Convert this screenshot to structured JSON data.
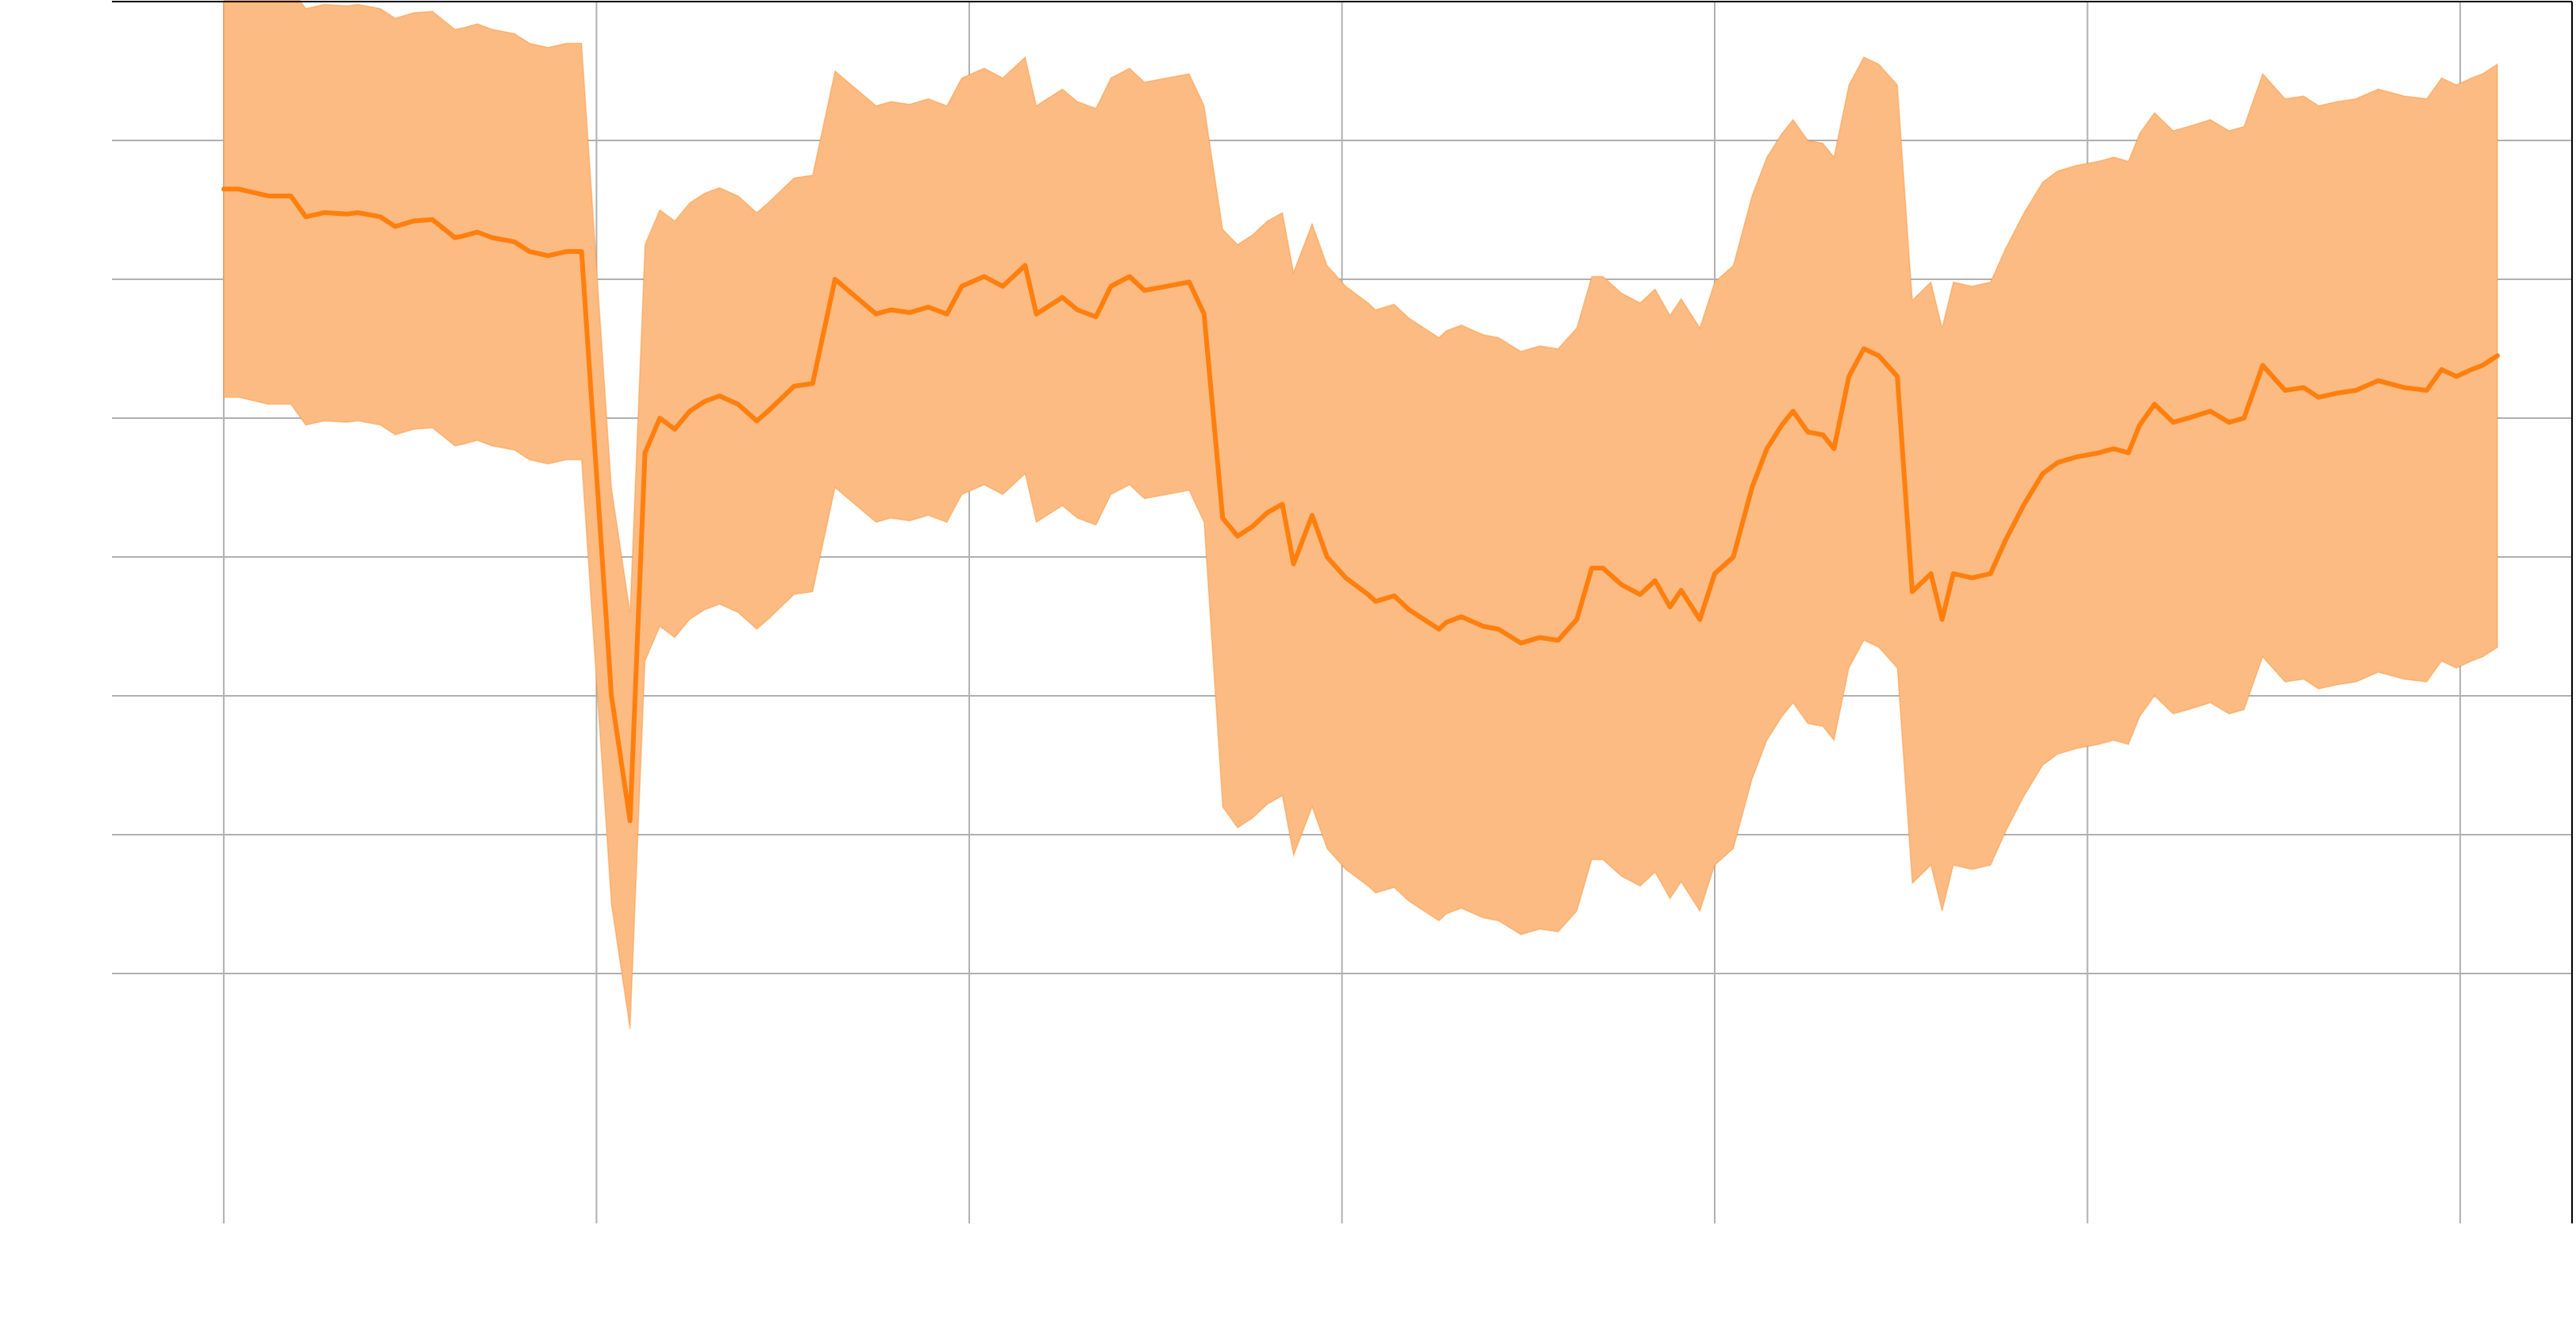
{
  "chart_data": {
    "type": "line",
    "title": "",
    "xlabel": "",
    "ylabel": "",
    "xlim": [
      -0.3,
      6.3
    ],
    "ylim": [
      -0.8,
      8.0
    ],
    "x_ticks": [
      0,
      1,
      2,
      3,
      4,
      5,
      6
    ],
    "y_ticks": [
      1,
      2,
      3,
      4,
      5,
      6,
      7
    ],
    "x_tick_labels": [],
    "y_tick_labels": [],
    "grid": true,
    "legend": "none",
    "colors": {
      "line": "#ff7f0e",
      "band": "#fbbb82"
    },
    "series": [
      {
        "x": [
          0,
          0.04,
          0.12,
          0.18,
          0.22,
          0.27,
          0.33,
          0.36,
          0.42,
          0.46,
          0.51,
          0.56,
          0.62,
          0.64,
          0.68,
          0.72,
          0.78,
          0.82,
          0.87,
          0.92,
          0.96,
          1.0,
          1.04,
          1.09,
          1.13,
          1.17,
          1.21,
          1.25,
          1.29,
          1.33,
          1.38,
          1.43,
          1.46,
          1.53,
          1.58,
          1.64,
          1.75,
          1.79,
          1.84,
          1.89,
          1.94,
          1.98,
          2.04,
          2.09,
          2.15,
          2.18,
          2.25,
          2.29,
          2.34,
          2.38,
          2.43,
          2.47,
          2.53,
          2.59,
          2.63,
          2.68,
          2.72,
          2.76,
          2.8,
          2.84,
          2.87,
          2.92,
          2.96,
          3.01,
          3.07,
          3.09,
          3.14,
          3.18,
          3.22,
          3.26,
          3.28,
          3.32,
          3.38,
          3.42,
          3.48,
          3.53,
          3.58,
          3.63,
          3.67,
          3.7,
          3.75,
          3.8,
          3.84,
          3.88,
          3.91,
          3.96,
          4.0,
          4.05,
          4.1,
          4.14,
          4.18,
          4.21,
          4.25,
          4.29,
          4.32,
          4.36,
          4.4,
          4.44,
          4.49,
          4.53,
          4.58,
          4.61,
          4.64,
          4.69,
          4.74,
          4.78,
          4.83,
          4.88,
          4.92,
          4.97,
          5.03,
          5.07,
          5.11,
          5.14,
          5.18,
          5.23,
          5.27,
          5.33,
          5.38,
          5.42,
          5.47,
          5.53,
          5.58,
          5.62,
          5.67,
          5.72,
          5.78,
          5.85,
          5.91,
          5.95,
          5.99,
          6.03,
          6.06,
          6.1
        ],
        "values": [
          6.65,
          6.65,
          6.6,
          6.6,
          6.45,
          6.48,
          6.47,
          6.48,
          6.45,
          6.38,
          6.42,
          6.43,
          6.3,
          6.31,
          6.34,
          6.3,
          6.27,
          6.2,
          6.17,
          6.2,
          6.2,
          4.6,
          3.0,
          2.1,
          4.75,
          5.0,
          4.92,
          5.05,
          5.12,
          5.16,
          5.1,
          4.98,
          5.05,
          5.23,
          5.25,
          6.0,
          5.75,
          5.78,
          5.76,
          5.8,
          5.75,
          5.95,
          6.02,
          5.95,
          6.1,
          5.75,
          5.87,
          5.78,
          5.73,
          5.95,
          6.02,
          5.92,
          5.95,
          5.98,
          5.75,
          4.28,
          4.15,
          4.22,
          4.32,
          4.38,
          3.95,
          4.3,
          4.0,
          3.85,
          3.73,
          3.68,
          3.72,
          3.62,
          3.55,
          3.48,
          3.53,
          3.57,
          3.5,
          3.48,
          3.38,
          3.42,
          3.4,
          3.55,
          3.92,
          3.92,
          3.8,
          3.73,
          3.83,
          3.64,
          3.76,
          3.55,
          3.88,
          4.0,
          4.5,
          4.78,
          4.95,
          5.05,
          4.9,
          4.88,
          4.78,
          5.3,
          5.5,
          5.45,
          5.3,
          3.75,
          3.88,
          3.55,
          3.88,
          3.85,
          3.88,
          4.12,
          4.38,
          4.6,
          4.68,
          4.72,
          4.75,
          4.78,
          4.75,
          4.95,
          5.1,
          4.97,
          5.0,
          5.05,
          4.97,
          5.0,
          5.38,
          5.2,
          5.22,
          5.15,
          5.18,
          5.2,
          5.27,
          5.22,
          5.2,
          5.35,
          5.3,
          5.35,
          5.38,
          5.45
        ],
        "lower": [
          5.15,
          5.15,
          5.1,
          5.1,
          4.95,
          4.98,
          4.97,
          4.98,
          4.95,
          4.88,
          4.92,
          4.93,
          4.8,
          4.81,
          4.84,
          4.8,
          4.77,
          4.7,
          4.67,
          4.7,
          4.7,
          3.1,
          1.5,
          0.6,
          3.25,
          3.5,
          3.42,
          3.55,
          3.62,
          3.66,
          3.6,
          3.48,
          3.55,
          3.73,
          3.75,
          4.5,
          4.25,
          4.28,
          4.26,
          4.3,
          4.25,
          4.45,
          4.52,
          4.45,
          4.6,
          4.25,
          4.37,
          4.28,
          4.23,
          4.45,
          4.52,
          4.42,
          4.45,
          4.48,
          4.25,
          2.2,
          2.05,
          2.12,
          2.22,
          2.28,
          1.85,
          2.2,
          1.9,
          1.75,
          1.63,
          1.58,
          1.62,
          1.52,
          1.45,
          1.38,
          1.43,
          1.47,
          1.4,
          1.38,
          1.28,
          1.32,
          1.3,
          1.45,
          1.82,
          1.82,
          1.7,
          1.63,
          1.73,
          1.54,
          1.66,
          1.45,
          1.78,
          1.9,
          2.4,
          2.68,
          2.85,
          2.95,
          2.8,
          2.78,
          2.68,
          3.2,
          3.4,
          3.35,
          3.2,
          1.65,
          1.78,
          1.45,
          1.78,
          1.75,
          1.78,
          2.02,
          2.28,
          2.5,
          2.58,
          2.62,
          2.65,
          2.68,
          2.65,
          2.85,
          3.0,
          2.87,
          2.9,
          2.95,
          2.87,
          2.9,
          3.28,
          3.1,
          3.12,
          3.05,
          3.08,
          3.1,
          3.17,
          3.12,
          3.1,
          3.25,
          3.2,
          3.25,
          3.28,
          3.35
        ],
        "upper": [
          8.15,
          8.15,
          8.1,
          8.1,
          7.95,
          7.98,
          7.97,
          7.98,
          7.95,
          7.88,
          7.92,
          7.93,
          7.8,
          7.81,
          7.84,
          7.8,
          7.77,
          7.7,
          7.67,
          7.7,
          7.7,
          6.1,
          4.5,
          3.6,
          6.25,
          6.5,
          6.42,
          6.55,
          6.62,
          6.66,
          6.6,
          6.48,
          6.55,
          6.73,
          6.75,
          7.5,
          7.25,
          7.28,
          7.26,
          7.3,
          7.25,
          7.45,
          7.52,
          7.45,
          7.6,
          7.25,
          7.37,
          7.28,
          7.23,
          7.45,
          7.52,
          7.42,
          7.45,
          7.48,
          7.25,
          6.36,
          6.25,
          6.32,
          6.42,
          6.48,
          6.05,
          6.4,
          6.1,
          5.95,
          5.83,
          5.78,
          5.82,
          5.72,
          5.65,
          5.58,
          5.63,
          5.67,
          5.6,
          5.58,
          5.48,
          5.52,
          5.5,
          5.65,
          6.02,
          6.02,
          5.9,
          5.83,
          5.93,
          5.74,
          5.86,
          5.65,
          5.98,
          6.1,
          6.6,
          6.88,
          7.05,
          7.15,
          7.0,
          6.98,
          6.88,
          7.4,
          7.6,
          7.55,
          7.4,
          5.85,
          5.98,
          5.65,
          5.98,
          5.95,
          5.98,
          6.22,
          6.48,
          6.7,
          6.78,
          6.82,
          6.85,
          6.88,
          6.85,
          7.05,
          7.2,
          7.07,
          7.1,
          7.15,
          7.07,
          7.1,
          7.48,
          7.3,
          7.32,
          7.25,
          7.28,
          7.3,
          7.37,
          7.32,
          7.3,
          7.45,
          7.4,
          7.45,
          7.48,
          7.55
        ]
      }
    ]
  }
}
